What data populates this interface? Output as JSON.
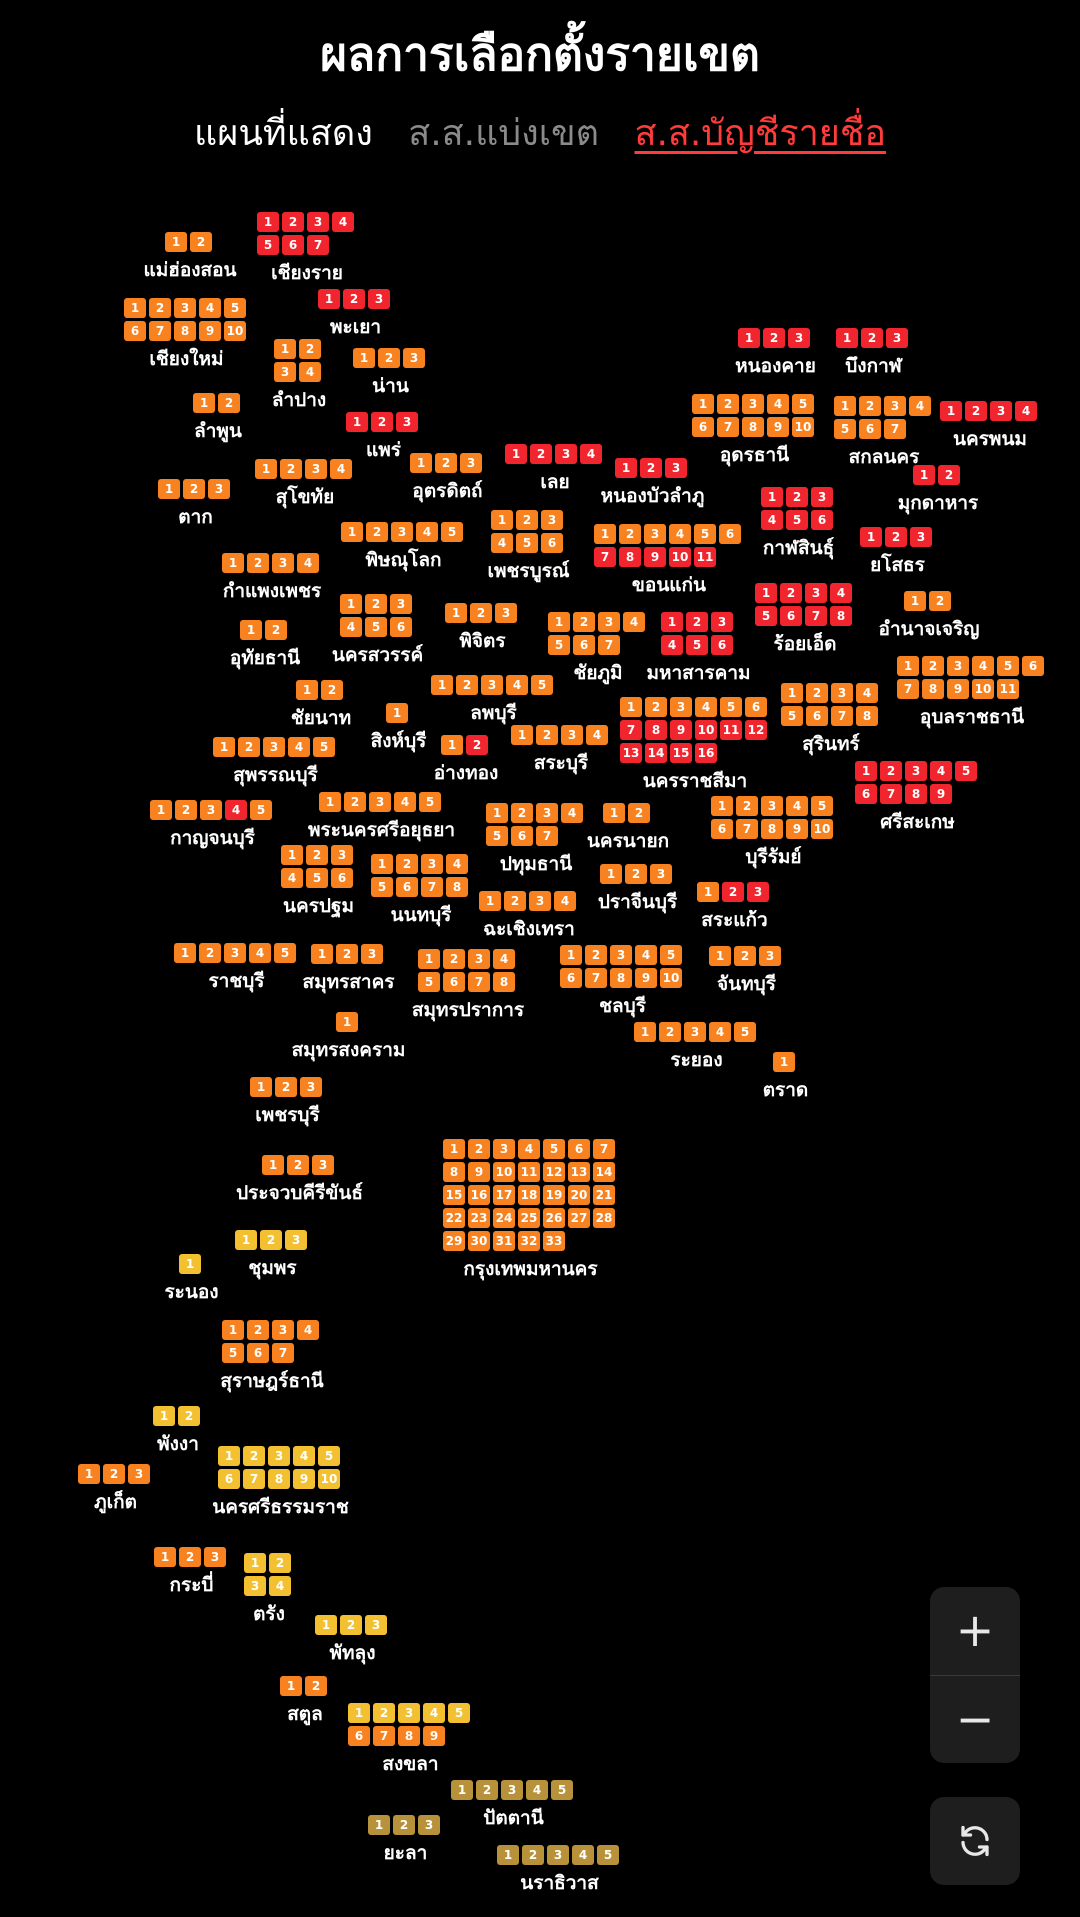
{
  "header": {
    "title": "ผลการเลือกตั้งรายเขต",
    "show_label": "แผนที่แสดง",
    "option_district": "ส.ส.แบ่งเขต",
    "option_party_list": "ส.ส.บัญชีรายชื่อ",
    "active_option": "ส.ส.บัญชีรายชื่อ"
  },
  "controls": {
    "zoom_in": "+",
    "zoom_out": "−",
    "reset_icon": "refresh-icon"
  },
  "colors": {
    "red": "#f0252d",
    "orange_red": "#f85a1c",
    "orange": "#f7821f",
    "orange_yellow": "#f9a61d",
    "yellow": "#f3c031",
    "khaki": "#b8923a",
    "background": "#000000"
  },
  "provinces": [
    {
      "name": "แม่ฮ่องสอน",
      "seats": 2,
      "color": "orange",
      "cols": 2
    },
    {
      "name": "เชียงราย",
      "seats": 7,
      "color": "red",
      "cols": 4
    },
    {
      "name": "เชียงใหม่",
      "seats": 10,
      "color": "orange",
      "cols": 5
    },
    {
      "name": "พะเยา",
      "seats": 3,
      "color": "red",
      "cols": 3
    },
    {
      "name": "ลำปาง",
      "seats": 4,
      "color": "orange",
      "cols": 2
    },
    {
      "name": "น่าน",
      "seats": 3,
      "color": "orange",
      "cols": 3
    },
    {
      "name": "ลำพูน",
      "seats": 2,
      "color": "orange",
      "cols": 2
    },
    {
      "name": "แพร่",
      "seats": 3,
      "color": "red",
      "cols": 3
    },
    {
      "name": "ตาก",
      "seats": 3,
      "color": "orange",
      "cols": 3
    },
    {
      "name": "สุโขทัย",
      "seats": 4,
      "color": "orange",
      "cols": 4
    },
    {
      "name": "อุตรดิตถ์",
      "seats": 3,
      "color": "orange",
      "cols": 3
    },
    {
      "name": "เลย",
      "seats": 4,
      "color": "red",
      "cols": 4
    },
    {
      "name": "หนองบัวลำภู",
      "seats": 3,
      "color": "red",
      "cols": 3
    },
    {
      "name": "หนองคาย",
      "seats": 3,
      "color": "red",
      "cols": 3
    },
    {
      "name": "บึงกาฬ",
      "seats": 3,
      "color": "red",
      "cols": 3
    },
    {
      "name": "อุดรธานี",
      "seats": 10,
      "color": "orange",
      "cols": 5
    },
    {
      "name": "สกลนคร",
      "seats": 7,
      "color": "orange",
      "cols": 4
    },
    {
      "name": "นครพนม",
      "seats": 4,
      "color": "red",
      "cols": 4
    },
    {
      "name": "มุกดาหาร",
      "seats": 2,
      "color": "red",
      "cols": 2
    },
    {
      "name": "พิษณุโลก",
      "seats": 5,
      "color": "orange",
      "cols": 5
    },
    {
      "name": "เพชรบูรณ์",
      "seats": 6,
      "color": "orange",
      "cols": 3
    },
    {
      "name": "ขอนแก่น",
      "seats": 11,
      "color": "mixed_kk",
      "cols": 6
    },
    {
      "name": "กาฬสินธุ์",
      "seats": 6,
      "color": "red",
      "cols": 3
    },
    {
      "name": "ยโสธร",
      "seats": 3,
      "color": "red",
      "cols": 3
    },
    {
      "name": "กำแพงเพชร",
      "seats": 4,
      "color": "orange",
      "cols": 4
    },
    {
      "name": "นครสวรรค์",
      "seats": 6,
      "color": "orange",
      "cols": 3
    },
    {
      "name": "พิจิตร",
      "seats": 3,
      "color": "orange",
      "cols": 3
    },
    {
      "name": "ชัยภูมิ",
      "seats": 7,
      "color": "orange",
      "cols": 4
    },
    {
      "name": "มหาสารคาม",
      "seats": 6,
      "color": "red",
      "cols": 3
    },
    {
      "name": "ร้อยเอ็ด",
      "seats": 8,
      "color": "red",
      "cols": 4
    },
    {
      "name": "อำนาจเจริญ",
      "seats": 2,
      "color": "orange",
      "cols": 2
    },
    {
      "name": "อุทัยธานี",
      "seats": 2,
      "color": "orange",
      "cols": 2
    },
    {
      "name": "อุบลราชธานี",
      "seats": 11,
      "color": "orange",
      "cols": 6
    },
    {
      "name": "ชัยนาท",
      "seats": 2,
      "color": "orange",
      "cols": 2
    },
    {
      "name": "ลพบุรี",
      "seats": 5,
      "color": "orange",
      "cols": 5
    },
    {
      "name": "สุรินทร์",
      "seats": 8,
      "color": "orange",
      "cols": 4
    },
    {
      "name": "สิงห์บุรี",
      "seats": 1,
      "color": "orange",
      "cols": 1
    },
    {
      "name": "นครราชสีมา",
      "seats": 16,
      "color": "mixed_kr",
      "cols": 6
    },
    {
      "name": "สุพรรณบุรี",
      "seats": 5,
      "color": "orange",
      "cols": 5
    },
    {
      "name": "อ่างทอง",
      "seats": 2,
      "color": "mixed_at",
      "cols": 2
    },
    {
      "name": "สระบุรี",
      "seats": 4,
      "color": "orange",
      "cols": 4
    },
    {
      "name": "ศรีสะเกษ",
      "seats": 9,
      "color": "red",
      "cols": 5
    },
    {
      "name": "กาญจนบุรี",
      "seats": 5,
      "color": "mixed_kb",
      "cols": 5
    },
    {
      "name": "พระนครศรีอยุธยา",
      "seats": 5,
      "color": "orange",
      "cols": 5
    },
    {
      "name": "นครนายก",
      "seats": 2,
      "color": "orange",
      "cols": 2
    },
    {
      "name": "ปทุมธานี",
      "seats": 7,
      "color": "orange",
      "cols": 4
    },
    {
      "name": "บุรีรัมย์",
      "seats": 10,
      "color": "orange",
      "cols": 5
    },
    {
      "name": "นครปฐม",
      "seats": 6,
      "color": "orange",
      "cols": 3
    },
    {
      "name": "นนทบุรี",
      "seats": 8,
      "color": "orange",
      "cols": 4
    },
    {
      "name": "ปราจีนบุรี",
      "seats": 3,
      "color": "orange",
      "cols": 3
    },
    {
      "name": "ฉะเชิงเทรา",
      "seats": 4,
      "color": "orange",
      "cols": 4
    },
    {
      "name": "สระแก้ว",
      "seats": 3,
      "color": "mixed_sk",
      "cols": 3
    },
    {
      "name": "ราชบุรี",
      "seats": 5,
      "color": "orange",
      "cols": 5
    },
    {
      "name": "สมุทรสาคร",
      "seats": 3,
      "color": "orange",
      "cols": 3
    },
    {
      "name": "สมุทรปราการ",
      "seats": 8,
      "color": "orange",
      "cols": 4
    },
    {
      "name": "ชลบุรี",
      "seats": 10,
      "color": "orange",
      "cols": 5
    },
    {
      "name": "จันทบุรี",
      "seats": 3,
      "color": "orange",
      "cols": 3
    },
    {
      "name": "สมุทรสงคราม",
      "seats": 1,
      "color": "orange",
      "cols": 1
    },
    {
      "name": "ระยอง",
      "seats": 5,
      "color": "orange",
      "cols": 5
    },
    {
      "name": "ตราด",
      "seats": 1,
      "color": "orange",
      "cols": 1
    },
    {
      "name": "เพชรบุรี",
      "seats": 3,
      "color": "orange",
      "cols": 3
    },
    {
      "name": "ประจวบคีรีขันธ์",
      "seats": 3,
      "color": "orange",
      "cols": 3
    },
    {
      "name": "กรุงเทพมหานคร",
      "seats": 33,
      "color": "orange",
      "cols": 7
    },
    {
      "name": "ชุมพร",
      "seats": 3,
      "color": "yellow",
      "cols": 3
    },
    {
      "name": "ระนอง",
      "seats": 1,
      "color": "yellow",
      "cols": 1
    },
    {
      "name": "สุราษฎร์ธานี",
      "seats": 7,
      "color": "orange",
      "cols": 4
    },
    {
      "name": "พังงา",
      "seats": 2,
      "color": "yellow",
      "cols": 2
    },
    {
      "name": "นครศรีธรรมราช",
      "seats": 10,
      "color": "yellow",
      "cols": 5
    },
    {
      "name": "ภูเก็ต",
      "seats": 3,
      "color": "orange",
      "cols": 3
    },
    {
      "name": "กระบี่",
      "seats": 3,
      "color": "orange",
      "cols": 3
    },
    {
      "name": "ตรัง",
      "seats": 4,
      "color": "yellow",
      "cols": 2
    },
    {
      "name": "พัทลุง",
      "seats": 3,
      "color": "yellow",
      "cols": 3
    },
    {
      "name": "สตูล",
      "seats": 2,
      "color": "orange",
      "cols": 2
    },
    {
      "name": "สงขลา",
      "seats": 9,
      "color": "mixed_sg",
      "cols": 5
    },
    {
      "name": "ปัตตานี",
      "seats": 5,
      "color": "khaki",
      "cols": 5
    },
    {
      "name": "ยะลา",
      "seats": 3,
      "color": "khaki",
      "cols": 3
    },
    {
      "name": "นราธิวาส",
      "seats": 5,
      "color": "khaki",
      "cols": 5
    }
  ]
}
